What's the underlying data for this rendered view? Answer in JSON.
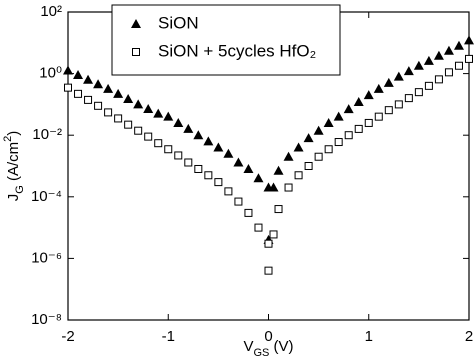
{
  "chart_data": {
    "type": "scatter",
    "xlabel": [
      "V",
      "GS",
      " (V)"
    ],
    "ylabel": [
      "J",
      "G",
      " (A/cm",
      "2",
      ")"
    ],
    "x": [
      -2.0,
      -1.9,
      -1.8,
      -1.7,
      -1.6,
      -1.5,
      -1.4,
      -1.3,
      -1.2,
      -1.1,
      -1.0,
      -0.9,
      -0.8,
      -0.7,
      -0.6,
      -0.5,
      -0.4,
      -0.3,
      -0.2,
      -0.1,
      0,
      0,
      0.05,
      0.1,
      0.2,
      0.3,
      0.4,
      0.5,
      0.6,
      0.7,
      0.8,
      0.9,
      1.0,
      1.1,
      1.2,
      1.3,
      1.4,
      1.5,
      1.6,
      1.7,
      1.8,
      1.9,
      2.0
    ],
    "series": [
      {
        "name": "SiON",
        "color": "#000000",
        "marker": "triangle",
        "values": [
          1.26,
          0.9,
          0.63,
          0.45,
          0.32,
          0.22,
          0.15,
          0.1,
          0.071,
          0.05,
          0.04,
          0.025,
          0.016,
          0.01,
          0.0063,
          0.004,
          0.0025,
          0.0013,
          0.0008,
          0.0004,
          0.0002,
          4e-06,
          0.0002,
          0.0007,
          0.002,
          0.004,
          0.008,
          0.014,
          0.025,
          0.04,
          0.07,
          0.12,
          0.2,
          0.32,
          0.5,
          0.8,
          1.2,
          1.8,
          2.6,
          3.8,
          5.5,
          8,
          12
        ]
      },
      {
        "name": "SiON + 5cycles HfO₂",
        "color": "#000000",
        "marker": "square",
        "values": [
          0.35,
          0.22,
          0.14,
          0.09,
          0.055,
          0.035,
          0.022,
          0.014,
          0.009,
          0.0055,
          0.0035,
          0.0022,
          0.0013,
          0.0008,
          0.0005,
          0.0003,
          0.00015,
          7e-05,
          3e-05,
          1e-05,
          3e-06,
          4e-07,
          6e-06,
          4e-05,
          0.0002,
          0.0005,
          0.001,
          0.002,
          0.0035,
          0.006,
          0.01,
          0.016,
          0.025,
          0.04,
          0.065,
          0.1,
          0.16,
          0.25,
          0.4,
          0.65,
          1.1,
          1.8,
          3
        ]
      }
    ],
    "xlim": [
      -2,
      2
    ],
    "xticks": [
      -2,
      -1,
      0,
      1,
      2
    ],
    "ylim": [
      1e-08,
      100
    ],
    "log_y": true,
    "yticks": [
      {
        "value": 1e-08,
        "label": "10⁻⁸"
      },
      {
        "value": 1e-06,
        "label": "10⁻⁶"
      },
      {
        "value": 0.0001,
        "label": "10⁻⁴"
      },
      {
        "value": 0.01,
        "label": "10⁻²"
      },
      {
        "value": 1,
        "label": "10⁰"
      },
      {
        "value": 100,
        "label": "10²"
      }
    ],
    "legend": "top-left"
  }
}
